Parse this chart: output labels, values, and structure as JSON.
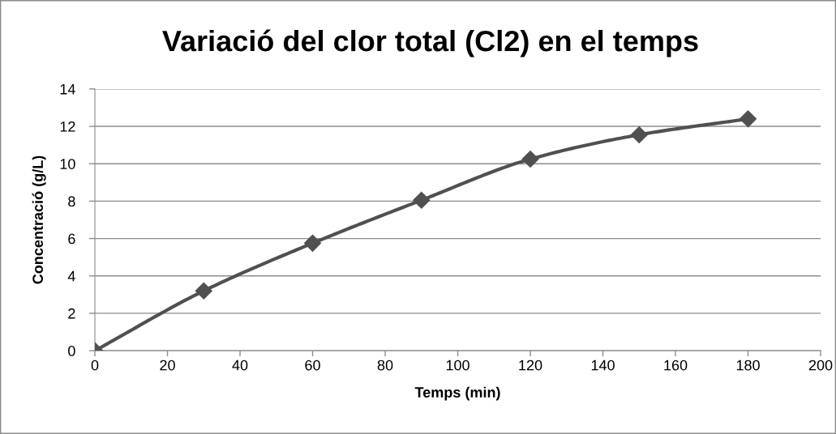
{
  "chart_data": {
    "type": "line",
    "title": "Variació del clor total (Cl2) en el temps",
    "xlabel": "Temps (min)",
    "ylabel": "Concentració (g/L)",
    "x": [
      0,
      30,
      60,
      90,
      120,
      150,
      180
    ],
    "series": [
      {
        "color": "#505050",
        "values": [
          0,
          3.2,
          5.75,
          8.05,
          10.25,
          11.55,
          12.4
        ]
      }
    ],
    "xlim": [
      0,
      200
    ],
    "xticks": [
      0,
      20,
      40,
      60,
      80,
      100,
      120,
      140,
      160,
      180,
      200
    ],
    "ylim": [
      0,
      14
    ],
    "yticks": [
      0,
      2,
      4,
      6,
      8,
      10,
      12,
      14
    ],
    "grid": "y",
    "marker": "diamond",
    "line_style": "solid"
  }
}
